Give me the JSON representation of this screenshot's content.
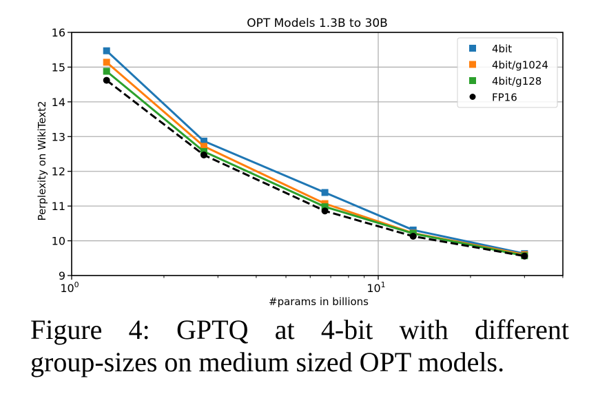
{
  "chart_data": {
    "type": "line",
    "title": "OPT Models 1.3B to 30B",
    "xlabel": "#params in billions",
    "ylabel": "Perplexity on WikiText2",
    "xscale": "log",
    "xlim": [
      1,
      45
    ],
    "ylim": [
      9,
      16
    ],
    "x_major_ticks": [
      {
        "value": 1,
        "base": "10",
        "exp": "0"
      },
      {
        "value": 10,
        "base": "10",
        "exp": "1"
      }
    ],
    "x_minor_ticks": [
      2,
      3,
      4,
      5,
      6,
      7,
      8,
      9,
      20,
      30,
      40
    ],
    "y_ticks": [
      9,
      10,
      11,
      12,
      13,
      14,
      15,
      16
    ],
    "grid": true,
    "legend_position": "top-right",
    "x": [
      1.3,
      2.7,
      6.7,
      13,
      30
    ],
    "series": [
      {
        "name": "4bit",
        "color": "#1f77b4",
        "marker": "square",
        "dashed": false,
        "values": [
          15.47,
          12.87,
          11.39,
          10.31,
          9.63
        ]
      },
      {
        "name": "4bit/g1024",
        "color": "#ff7f0e",
        "marker": "square",
        "dashed": false,
        "values": [
          15.14,
          12.72,
          11.07,
          10.22,
          9.6
        ]
      },
      {
        "name": "4bit/g128",
        "color": "#2ca02c",
        "marker": "square",
        "dashed": false,
        "values": [
          14.88,
          12.57,
          10.98,
          10.21,
          9.57
        ]
      },
      {
        "name": "FP16",
        "color": "#000000",
        "marker": "circle",
        "dashed": true,
        "values": [
          14.62,
          12.47,
          10.86,
          10.13,
          9.56
        ]
      }
    ]
  },
  "caption": {
    "line1_words": [
      "Figure",
      "4:",
      "GPTQ",
      "at",
      "4-bit",
      "with",
      "different"
    ],
    "line2": "group-sizes on medium sized OPT models."
  }
}
